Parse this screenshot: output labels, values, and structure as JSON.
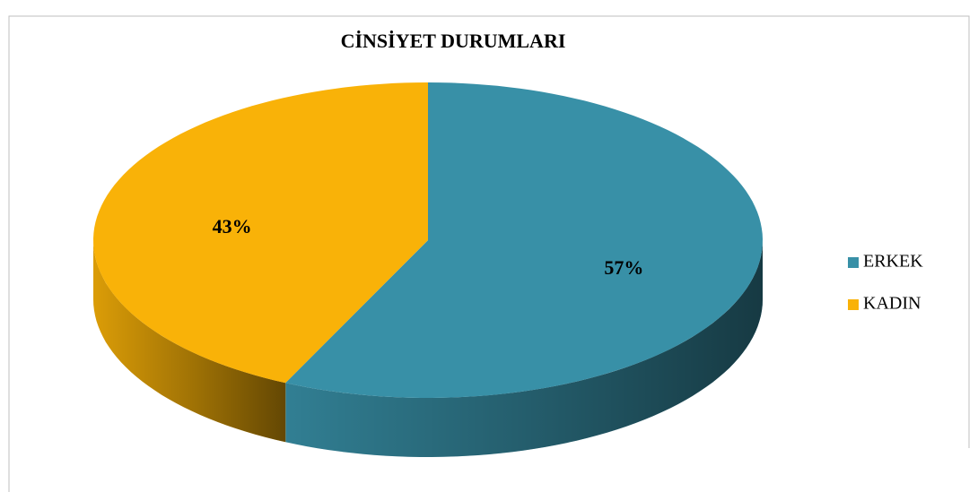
{
  "chart_data": {
    "type": "pie",
    "title": "CİNSİYET DURUMLARI",
    "categories": [
      "ERKEK",
      "KADIN"
    ],
    "values": [
      57,
      43
    ],
    "value_labels": [
      "57%",
      "43%"
    ],
    "colors": [
      "#3890a7",
      "#f9b208"
    ],
    "legend": "right"
  }
}
